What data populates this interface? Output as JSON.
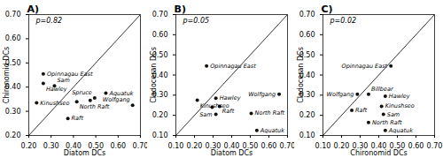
{
  "chart_data": [
    {
      "type": "scatter",
      "title": "A)",
      "annotations": [
        "p=0.82"
      ],
      "xlabel": "Diatom DCs",
      "ylabel": "Chironomid DCs",
      "xlim": [
        0.2,
        0.7
      ],
      "ylim": [
        0.2,
        0.7
      ],
      "xticks": [
        0.2,
        0.3,
        0.4,
        0.5,
        0.6,
        0.7
      ],
      "yticks": [
        0.2,
        0.3,
        0.4,
        0.5,
        0.6,
        0.7
      ],
      "color": "#111111",
      "x": [
        0.265,
        0.265,
        0.315,
        0.235,
        0.415,
        0.375,
        0.495,
        0.475,
        0.545,
        0.665
      ],
      "values": [
        0.455,
        0.415,
        0.405,
        0.335,
        0.34,
        0.27,
        0.355,
        0.345,
        0.375,
        0.325
      ],
      "labels": [
        "Opinnagau East",
        "Hawley",
        "Sam",
        "Kinushseo",
        "North Raft",
        "Raft",
        "Spruce",
        null,
        "Aquatuk",
        "Wolfgang"
      ]
    },
    {
      "type": "scatter",
      "title": "B)",
      "annotations": [
        "p=0.05"
      ],
      "xlabel": "Diatom DCs",
      "ylabel": "Cladoceran DCs",
      "xlim": [
        0.1,
        0.7
      ],
      "ylim": [
        0.1,
        0.7
      ],
      "xticks": [
        0.1,
        0.2,
        0.3,
        0.4,
        0.5,
        0.6,
        0.7
      ],
      "yticks": [
        0.1,
        0.2,
        0.3,
        0.4,
        0.5,
        0.6,
        0.7
      ],
      "color": "#111111",
      "x": [
        0.265,
        0.315,
        0.215,
        0.335,
        0.295,
        0.315,
        0.505,
        0.535,
        0.655
      ],
      "values": [
        0.445,
        0.285,
        0.275,
        0.245,
        0.24,
        0.205,
        0.21,
        0.125,
        0.305
      ],
      "labels": [
        "Opinnagau East",
        "Hawley",
        "Kinushseo",
        "Raft",
        null,
        "Sam",
        "North Raft",
        "Aquatuk",
        "Wolfgang"
      ]
    },
    {
      "type": "scatter",
      "title": "C)",
      "annotations": [
        "p=0.02"
      ],
      "xlabel": "Chironomid DCs",
      "ylabel": "Cladoceran DCs",
      "xlim": [
        0.1,
        0.7
      ],
      "ylim": [
        0.1,
        0.7
      ],
      "xticks": [
        0.1,
        0.2,
        0.3,
        0.4,
        0.5,
        0.6,
        0.7
      ],
      "yticks": [
        0.1,
        0.2,
        0.3,
        0.4,
        0.5,
        0.6,
        0.7
      ],
      "color": "#111111",
      "x": [
        0.465,
        0.435,
        0.345,
        0.285,
        0.415,
        0.425,
        0.255,
        0.345,
        0.435
      ],
      "values": [
        0.445,
        0.295,
        0.305,
        0.305,
        0.245,
        0.205,
        0.225,
        0.165,
        0.125
      ],
      "labels": [
        "Opinnagau East",
        "Hawley",
        "Billbear",
        "Wolfgang",
        "Kinushseo",
        "Sam",
        "Raft",
        "North Raft",
        "Aquatuk"
      ]
    }
  ]
}
